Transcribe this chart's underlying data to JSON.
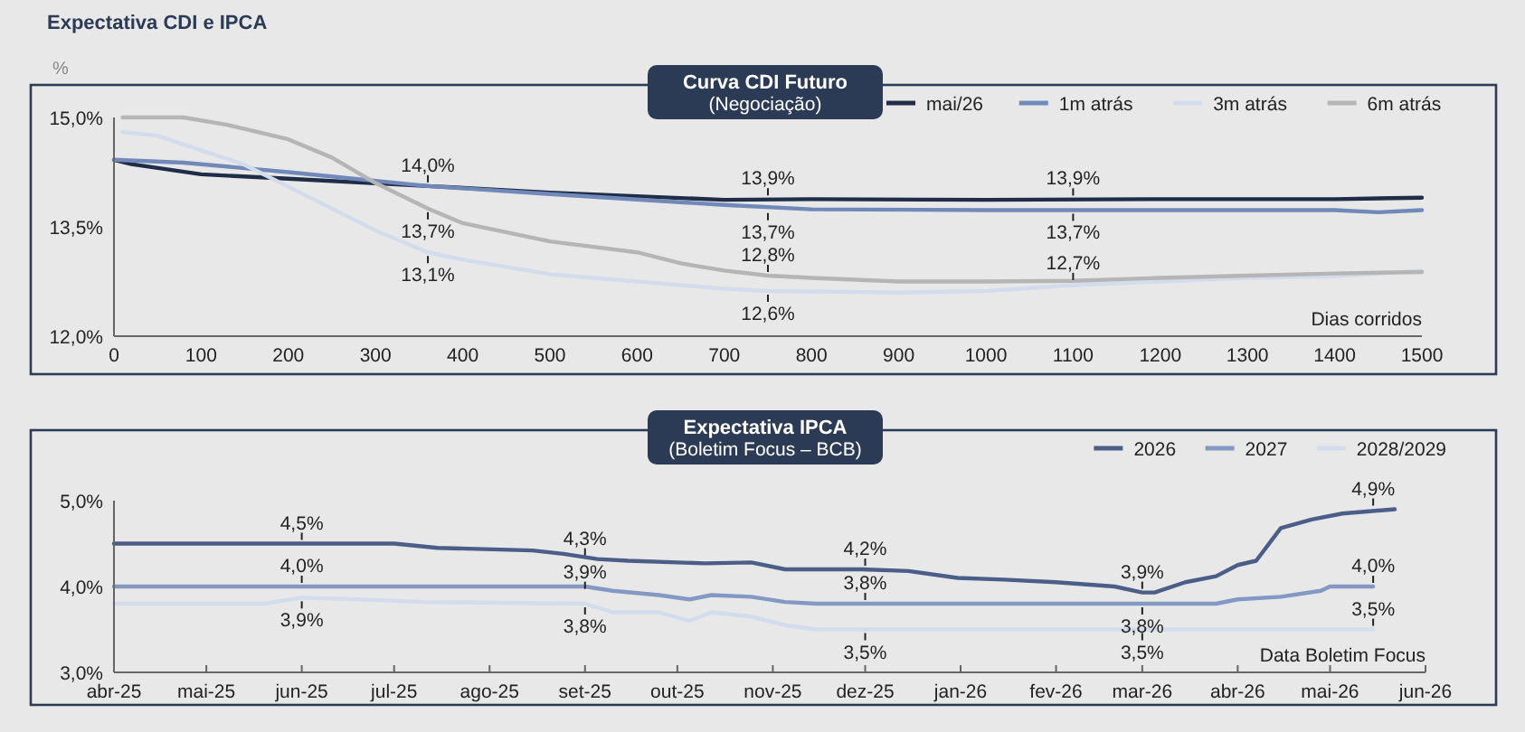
{
  "chart_data": [
    {
      "type": "line",
      "title": "Curva CDI Futuro",
      "subtitle": "(Negociação)",
      "xlabel": "Dias corridos",
      "ylabel": "%",
      "annotations": [
        "Expectativa CDI e IPCA",
        {
          "text": "14,0%",
          "x": 360,
          "y": 14.06
        },
        {
          "text": "13,7%",
          "x": 360,
          "y": 13.75
        },
        {
          "text": "13,1%",
          "x": 360,
          "y": 13.15
        },
        {
          "text": "13,9%",
          "x": 750,
          "y": 13.88
        },
        {
          "text": "13,7%",
          "x": 750,
          "y": 13.74
        },
        {
          "text": "12,8%",
          "x": 750,
          "y": 12.83
        },
        {
          "text": "12,6%",
          "x": 750,
          "y": 12.62
        },
        {
          "text": "13,9%",
          "x": 1100,
          "y": 13.88
        },
        {
          "text": "13,7%",
          "x": 1100,
          "y": 13.73
        },
        {
          "text": "12,7%",
          "x": 1100,
          "y": 12.72
        }
      ],
      "xlim": [
        0,
        1500
      ],
      "xticks": [
        0,
        100,
        200,
        300,
        400,
        500,
        600,
        700,
        800,
        900,
        1000,
        1100,
        1200,
        1300,
        1400,
        1500
      ],
      "ylim": [
        12,
        15
      ],
      "yticks": [
        {
          "value": 12,
          "label": "12,0%"
        },
        {
          "value": 13.5,
          "label": "13,5%"
        },
        {
          "value": 15,
          "label": "15,0%"
        }
      ],
      "legend": "top right",
      "series": [
        {
          "name": "mai/26",
          "color": "#1f2d48",
          "x": [
            0,
            20,
            100,
            200,
            360,
            500,
            700,
            800,
            1000,
            1200,
            1400,
            1500
          ],
          "values": [
            14.42,
            14.36,
            14.22,
            14.16,
            14.06,
            13.97,
            13.87,
            13.88,
            13.87,
            13.88,
            13.88,
            13.9
          ]
        },
        {
          "name": "1m atrás",
          "color": "#7189b9",
          "x": [
            0,
            80,
            200,
            360,
            500,
            700,
            800,
            1000,
            1400,
            1450,
            1500
          ],
          "values": [
            14.42,
            14.38,
            14.25,
            14.06,
            13.95,
            13.8,
            13.74,
            13.73,
            13.73,
            13.7,
            13.73
          ]
        },
        {
          "name": "3m atrás",
          "color": "#d3dcec",
          "x": [
            10,
            50,
            100,
            150,
            200,
            250,
            300,
            360,
            400,
            500,
            600,
            700,
            750,
            900,
            1000,
            1100,
            1200,
            1300,
            1400,
            1500
          ],
          "values": [
            14.8,
            14.75,
            14.55,
            14.35,
            14.05,
            13.75,
            13.45,
            13.15,
            13.05,
            12.85,
            12.75,
            12.65,
            12.62,
            12.6,
            12.62,
            12.7,
            12.75,
            12.8,
            12.82,
            12.9
          ]
        },
        {
          "name": "6m atrás",
          "color": "#b5b5b5",
          "x": [
            10,
            80,
            130,
            200,
            250,
            300,
            360,
            400,
            500,
            600,
            650,
            700,
            750,
            800,
            900,
            1000,
            1100,
            1200,
            1300,
            1400,
            1500
          ],
          "values": [
            15.0,
            15.0,
            14.9,
            14.7,
            14.45,
            14.1,
            13.75,
            13.55,
            13.3,
            13.15,
            13.0,
            12.9,
            12.83,
            12.8,
            12.75,
            12.75,
            12.76,
            12.8,
            12.83,
            12.86,
            12.88
          ]
        }
      ]
    },
    {
      "type": "line",
      "title": "Expectativa IPCA",
      "subtitle": "(Boletim Focus – BCB)",
      "xlabel": "Data Boletim Focus",
      "annotations": [
        {
          "text": "4,5%",
          "x": "2025-06-01",
          "y": 4.5
        },
        {
          "text": "4,0%",
          "x": "2025-06-01",
          "y": 4.0
        },
        {
          "text": "3,9%",
          "x": "2025-06-01",
          "y": 3.87
        },
        {
          "text": "4,3%",
          "x": "2025-09-01",
          "y": 4.32
        },
        {
          "text": "3,9%",
          "x": "2025-09-01",
          "y": 3.93
        },
        {
          "text": "3,8%",
          "x": "2025-09-01",
          "y": 3.8
        },
        {
          "text": "4,2%",
          "x": "2025-12-01",
          "y": 4.2
        },
        {
          "text": "3,8%",
          "x": "2025-12-01",
          "y": 3.8
        },
        {
          "text": "3,5%",
          "x": "2025-12-01",
          "y": 3.5
        },
        {
          "text": "3,9%",
          "x": "2026-03-01",
          "y": 3.93
        },
        {
          "text": "3,8%",
          "x": "2026-03-01",
          "y": 3.8
        },
        {
          "text": "3,5%",
          "x": "2026-03-01",
          "y": 3.5
        },
        {
          "text": "4,9%",
          "x": "2026-05-15",
          "y": 4.9
        },
        {
          "text": "4,0%",
          "x": "2026-05-15",
          "y": 4.0
        },
        {
          "text": "3,5%",
          "x": "2026-05-15",
          "y": 3.5
        }
      ],
      "xlim": [
        "2025-04-01",
        "2026-06-01"
      ],
      "xticks": [
        {
          "value": "2025-04-01",
          "label": "abr-25"
        },
        {
          "value": "2025-05-01",
          "label": "mai-25"
        },
        {
          "value": "2025-06-01",
          "label": "jun-25"
        },
        {
          "value": "2025-07-01",
          "label": "jul-25"
        },
        {
          "value": "2025-08-01",
          "label": "ago-25"
        },
        {
          "value": "2025-09-01",
          "label": "set-25"
        },
        {
          "value": "2025-10-01",
          "label": "out-25"
        },
        {
          "value": "2025-11-01",
          "label": "nov-25"
        },
        {
          "value": "2025-12-01",
          "label": "dez-25"
        },
        {
          "value": "2026-01-01",
          "label": "jan-26"
        },
        {
          "value": "2026-02-01",
          "label": "fev-26"
        },
        {
          "value": "2026-03-01",
          "label": "mar-26"
        },
        {
          "value": "2026-04-01",
          "label": "abr-26"
        },
        {
          "value": "2026-05-01",
          "label": "mai-26"
        },
        {
          "value": "2026-06-01",
          "label": "jun-26"
        }
      ],
      "ylim": [
        3,
        5
      ],
      "yticks": [
        {
          "value": 3,
          "label": "3,0%"
        },
        {
          "value": 4,
          "label": "4,0%"
        },
        {
          "value": 5,
          "label": "5,0%"
        }
      ],
      "legend": "top right",
      "series": [
        {
          "name": "2026",
          "color": "#4b5e88",
          "x": [
            "2025-04-01",
            "2025-07-01",
            "2025-07-15",
            "2025-08-15",
            "2025-08-25",
            "2025-09-05",
            "2025-09-15",
            "2025-10-10",
            "2025-10-25",
            "2025-11-05",
            "2025-11-30",
            "2025-12-15",
            "2025-12-31",
            "2026-01-15",
            "2026-02-01",
            "2026-02-20",
            "2026-03-01",
            "2026-03-05",
            "2026-03-15",
            "2026-03-25",
            "2026-04-01",
            "2026-04-07",
            "2026-04-15",
            "2026-04-25",
            "2026-05-05",
            "2026-05-22"
          ],
          "values": [
            4.5,
            4.5,
            4.45,
            4.42,
            4.38,
            4.32,
            4.3,
            4.27,
            4.28,
            4.2,
            4.2,
            4.18,
            4.1,
            4.08,
            4.05,
            4.0,
            3.93,
            3.93,
            4.05,
            4.12,
            4.25,
            4.3,
            4.68,
            4.78,
            4.85,
            4.9
          ]
        },
        {
          "name": "2027",
          "color": "#8398c2",
          "x": [
            "2025-04-01",
            "2025-09-01",
            "2025-09-10",
            "2025-09-25",
            "2025-10-05",
            "2025-10-12",
            "2025-10-25",
            "2025-11-05",
            "2025-11-15",
            "2026-03-25",
            "2026-04-01",
            "2026-04-15",
            "2026-04-28",
            "2026-05-01",
            "2026-05-15"
          ],
          "values": [
            4.0,
            4.0,
            3.95,
            3.9,
            3.85,
            3.9,
            3.88,
            3.82,
            3.8,
            3.8,
            3.85,
            3.88,
            3.95,
            4.0,
            4.0
          ]
        },
        {
          "name": "2028/2029",
          "color": "#d3dcec",
          "x": [
            "2025-04-01",
            "2025-05-20",
            "2025-06-01",
            "2025-06-20",
            "2025-07-10",
            "2025-09-01",
            "2025-09-10",
            "2025-09-25",
            "2025-10-05",
            "2025-10-12",
            "2025-10-25",
            "2025-11-05",
            "2025-11-15",
            "2026-05-15"
          ],
          "values": [
            3.8,
            3.8,
            3.87,
            3.85,
            3.82,
            3.8,
            3.7,
            3.7,
            3.6,
            3.7,
            3.65,
            3.55,
            3.5,
            3.5
          ]
        }
      ]
    }
  ]
}
